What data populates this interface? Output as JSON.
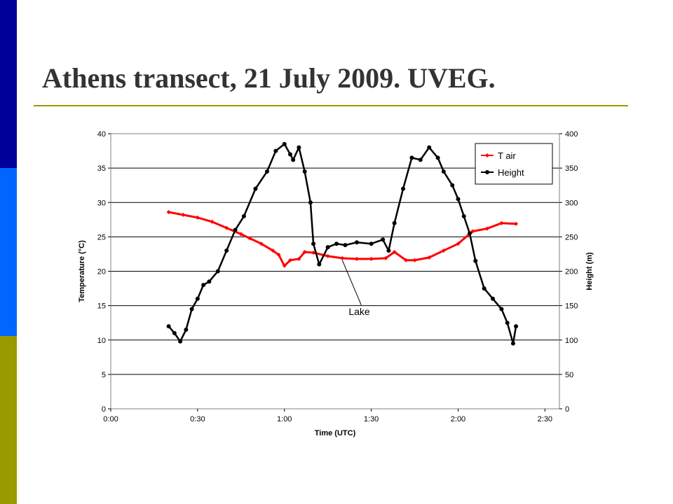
{
  "slide": {
    "title": "Athens transect, 21 July 2009. UVEG.",
    "accent_colors": {
      "bar_top": "#000099",
      "bar_mid": "#0066ff",
      "bar_bottom": "#999900",
      "rule": "#999900"
    }
  },
  "chart_data": {
    "type": "scatter",
    "title": "",
    "xlabel": "Time (UTC)",
    "ylabel": "Temperature (°C)",
    "y2label": "Height (m)",
    "xlim": [
      "0:00",
      "2:35"
    ],
    "ylim": [
      0,
      40
    ],
    "y2lim": [
      0,
      400
    ],
    "x_ticks": [
      "0:00",
      "0:30",
      "1:00",
      "1:30",
      "2:00",
      "2:30"
    ],
    "y_ticks": [
      "0",
      "5",
      "10",
      "15",
      "20",
      "25",
      "30",
      "35",
      "40"
    ],
    "y2_ticks": [
      "0",
      "50",
      "100",
      "150",
      "200",
      "250",
      "300",
      "350",
      "400"
    ],
    "grid": true,
    "legend_position": "top-right",
    "annotation": {
      "text": "Lake",
      "points_to": {
        "x": "1:20",
        "y": 22
      }
    },
    "series": [
      {
        "name": "T air",
        "axis": "left",
        "color": "#ff0000",
        "marker": "diamond",
        "x": [
          "0:20",
          "0:25",
          "0:30",
          "0:35",
          "0:40",
          "0:45",
          "0:48",
          "0:52",
          "0:56",
          "0:58",
          "1:00",
          "1:02",
          "1:05",
          "1:07",
          "1:10",
          "1:15",
          "1:20",
          "1:25",
          "1:30",
          "1:35",
          "1:38",
          "1:42",
          "1:45",
          "1:50",
          "1:55",
          "2:00",
          "2:05",
          "2:10",
          "2:15",
          "2:20"
        ],
        "values": [
          28.6,
          28.2,
          27.8,
          27.2,
          26.3,
          25.4,
          24.8,
          24.0,
          23.0,
          22.4,
          20.8,
          21.6,
          21.8,
          22.8,
          22.7,
          22.2,
          21.9,
          21.8,
          21.8,
          21.9,
          22.8,
          21.6,
          21.6,
          22.0,
          23.0,
          24.0,
          25.8,
          26.2,
          27.0,
          26.9
        ]
      },
      {
        "name": "Height",
        "axis": "right",
        "color": "#000000",
        "marker": "circle",
        "x": [
          "0:20",
          "0:22",
          "0:24",
          "0:26",
          "0:28",
          "0:30",
          "0:32",
          "0:34",
          "0:37",
          "0:40",
          "0:43",
          "0:46",
          "0:50",
          "0:54",
          "0:57",
          "1:00",
          "1:02",
          "1:03",
          "1:05",
          "1:07",
          "1:09",
          "1:10",
          "1:12",
          "1:15",
          "1:18",
          "1:21",
          "1:25",
          "1:30",
          "1:34",
          "1:36",
          "1:38",
          "1:41",
          "1:44",
          "1:47",
          "1:50",
          "1:53",
          "1:55",
          "1:58",
          "2:00",
          "2:02",
          "2:04",
          "2:06",
          "2:09",
          "2:12",
          "2:15",
          "2:17",
          "2:19",
          "2:20"
        ],
        "values": [
          120,
          110,
          98,
          115,
          145,
          160,
          180,
          185,
          200,
          230,
          260,
          280,
          320,
          345,
          375,
          385,
          370,
          362,
          380,
          345,
          300,
          240,
          210,
          235,
          240,
          238,
          242,
          240,
          246,
          230,
          270,
          320,
          365,
          362,
          380,
          365,
          345,
          325,
          305,
          280,
          255,
          215,
          175,
          160,
          145,
          125,
          95,
          120
        ]
      }
    ]
  }
}
